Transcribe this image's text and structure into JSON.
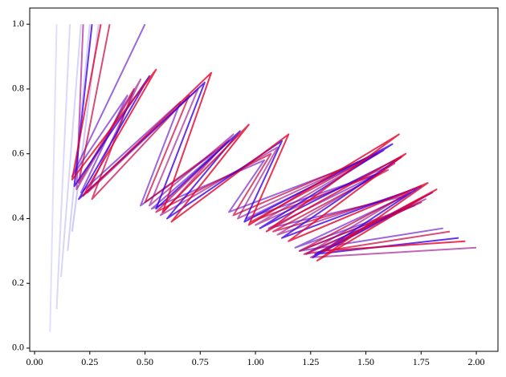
{
  "chart_data": {
    "type": "line",
    "xlim": [
      -0.022,
      2.098
    ],
    "ylim": [
      -0.01,
      1.05
    ],
    "xticks": [
      {
        "value": 0,
        "label": "0.00"
      },
      {
        "value": 0.25,
        "label": "0.25"
      },
      {
        "value": 0.5,
        "label": "0.50"
      },
      {
        "value": 0.75,
        "label": "0.75"
      },
      {
        "value": 1,
        "label": "1.00"
      },
      {
        "value": 1.25,
        "label": "1.25"
      },
      {
        "value": 1.5,
        "label": "1.50"
      },
      {
        "value": 1.75,
        "label": "1.75"
      },
      {
        "value": 2,
        "label": "2.00"
      }
    ],
    "yticks": [
      {
        "value": 0,
        "label": "0.0"
      },
      {
        "value": 0.2,
        "label": "0.2"
      },
      {
        "value": 0.4,
        "label": "0.4"
      },
      {
        "value": 0.6,
        "label": "0.6"
      },
      {
        "value": 0.8,
        "label": "0.8"
      },
      {
        "value": 1,
        "label": "1.0"
      }
    ],
    "grid": false,
    "series": [
      {
        "color": "rgba(60,40,230,0.15)",
        "x": [
          0.07,
          0.1
        ],
        "values": [
          0.05,
          1.0
        ]
      },
      {
        "color": "rgba(60,40,230,0.18)",
        "x": [
          0.1,
          0.16
        ],
        "values": [
          0.12,
          1.0
        ]
      },
      {
        "color": "rgba(60,40,230,0.2)",
        "x": [
          0.12,
          0.21
        ],
        "values": [
          0.22,
          1.0
        ]
      },
      {
        "color": "rgba(60,40,230,0.22)",
        "x": [
          0.15,
          0.25
        ],
        "values": [
          0.3,
          1.0
        ]
      },
      {
        "color": "rgba(60,40,230,0.25)",
        "x": [
          0.17,
          0.29
        ],
        "values": [
          0.36,
          1.0
        ]
      },
      {
        "color": "rgba(90,0,200,0.6)",
        "x": [
          0.5,
          0.17,
          0.42,
          0.21,
          0.66,
          0.48,
          0.85,
          0.53,
          1.04,
          0.88,
          1.5,
          0.96,
          1.56,
          1.06,
          1.68,
          1.18,
          1.72,
          1.2,
          1.85
        ],
        "values": [
          1.0,
          0.53,
          0.78,
          0.48,
          0.76,
          0.44,
          0.62,
          0.43,
          0.58,
          0.42,
          0.58,
          0.4,
          0.54,
          0.37,
          0.47,
          0.31,
          0.44,
          0.3,
          0.37
        ]
      },
      {
        "color": "rgba(200,0,60,0.7)",
        "x": [
          0.34,
          0.2,
          0.45,
          0.26,
          0.7,
          0.5,
          0.88,
          0.55,
          1.07,
          0.9,
          1.55,
          0.98,
          1.6,
          1.08,
          1.7,
          1.2,
          1.75,
          1.22,
          1.88
        ],
        "values": [
          1.0,
          0.51,
          0.8,
          0.46,
          0.78,
          0.45,
          0.64,
          0.42,
          0.6,
          0.41,
          0.6,
          0.39,
          0.55,
          0.36,
          0.48,
          0.3,
          0.45,
          0.29,
          0.36
        ]
      },
      {
        "color": "rgba(150,0,130,0.6)",
        "x": [
          0.22,
          0.19,
          0.48,
          0.24,
          0.74,
          0.52,
          0.9,
          0.57,
          1.1,
          0.92,
          1.58,
          1.0,
          1.63,
          1.1,
          1.72,
          1.23,
          1.77,
          1.25,
          2.0
        ],
        "values": [
          1.0,
          0.49,
          0.83,
          0.48,
          0.8,
          0.44,
          0.66,
          0.41,
          0.62,
          0.4,
          0.61,
          0.38,
          0.57,
          0.35,
          0.49,
          0.29,
          0.46,
          0.28,
          0.31
        ]
      },
      {
        "color": "rgba(60,0,230,0.8)",
        "x": [
          0.26,
          0.18,
          0.52,
          0.2,
          0.77,
          0.55,
          0.93,
          0.6,
          1.12,
          0.95,
          1.62,
          1.02,
          1.66,
          1.12,
          1.75,
          1.26,
          1.8,
          1.27,
          1.92
        ],
        "values": [
          1.0,
          0.5,
          0.84,
          0.46,
          0.82,
          0.43,
          0.67,
          0.4,
          0.64,
          0.39,
          0.63,
          0.37,
          0.59,
          0.34,
          0.5,
          0.28,
          0.48,
          0.29,
          0.34
        ]
      },
      {
        "color": "rgba(230,0,40,0.8)",
        "x": [
          0.3,
          0.17,
          0.55,
          0.22,
          0.8,
          0.58,
          0.97,
          0.62,
          1.15,
          0.97,
          1.65,
          1.05,
          1.68,
          1.15,
          1.78,
          1.28,
          1.82,
          1.3,
          1.95
        ],
        "values": [
          1.0,
          0.52,
          0.86,
          0.47,
          0.85,
          0.42,
          0.69,
          0.39,
          0.66,
          0.38,
          0.66,
          0.36,
          0.6,
          0.33,
          0.51,
          0.27,
          0.49,
          0.3,
          0.33
        ]
      }
    ]
  }
}
